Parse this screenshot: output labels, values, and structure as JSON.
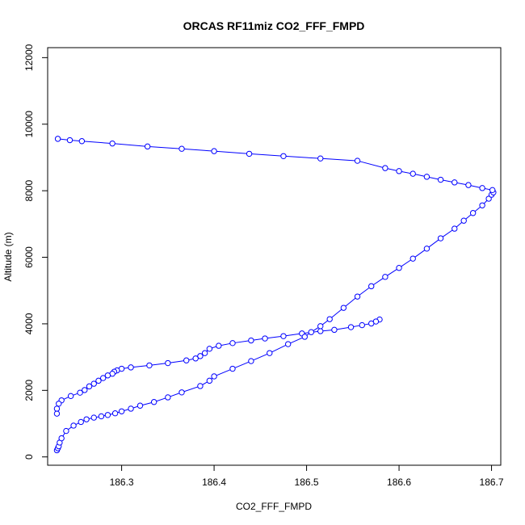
{
  "chart_data": {
    "type": "scatter",
    "title": "ORCAS RF11miz CO2_FFF_FMPD",
    "xlabel": "CO2_FFF_FMPD",
    "ylabel": "Altitude (m)",
    "xlim": [
      186.22,
      186.71
    ],
    "ylim": [
      -250,
      12300
    ],
    "xticks": [
      {
        "value": 186.3,
        "label": "186.3"
      },
      {
        "value": 186.4,
        "label": "186.4"
      },
      {
        "value": 186.5,
        "label": "186.5"
      },
      {
        "value": 186.6,
        "label": "186.6"
      },
      {
        "value": 186.7,
        "label": "186.7"
      }
    ],
    "yticks": [
      {
        "value": 0,
        "label": "0"
      },
      {
        "value": 2000,
        "label": "2000"
      },
      {
        "value": 4000,
        "label": "4000"
      },
      {
        "value": 6000,
        "label": "6000"
      },
      {
        "value": 8000,
        "label": "8000"
      },
      {
        "value": 10000,
        "label": "10000"
      },
      {
        "value": 12000,
        "label": "12000"
      }
    ],
    "series_color": "#0000ff",
    "grid": false,
    "series": [
      {
        "x": [
          186.579,
          186.575,
          186.57,
          186.56,
          186.548,
          186.53,
          186.515,
          186.495,
          186.475,
          186.455,
          186.44,
          186.42,
          186.405,
          186.395,
          186.39,
          186.385,
          186.38,
          186.37,
          186.35,
          186.33,
          186.31,
          186.3,
          186.295,
          186.292,
          186.29,
          186.285,
          186.28,
          186.275,
          186.27,
          186.265,
          186.26,
          186.255,
          186.245,
          186.235,
          186.232,
          186.23,
          186.23
        ],
        "y": [
          4130,
          4070,
          4010,
          3960,
          3900,
          3820,
          3780,
          3710,
          3630,
          3560,
          3500,
          3420,
          3340,
          3250,
          3120,
          3030,
          2960,
          2900,
          2820,
          2750,
          2690,
          2650,
          2600,
          2560,
          2500,
          2450,
          2370,
          2290,
          2200,
          2120,
          2010,
          1930,
          1830,
          1700,
          1600,
          1450,
          1300
        ]
      },
      {
        "x": [
          186.23,
          186.231,
          186.232,
          186.233,
          186.235,
          186.24,
          186.248,
          186.256,
          186.262,
          186.27,
          186.278,
          186.285,
          186.293,
          186.3,
          186.31,
          186.32,
          186.335,
          186.35,
          186.365,
          186.385,
          186.395,
          186.4,
          186.42,
          186.44,
          186.46,
          186.48,
          186.498,
          186.505,
          186.515,
          186.525,
          186.54,
          186.555,
          186.57,
          186.585,
          186.6,
          186.615,
          186.63,
          186.645,
          186.66,
          186.67,
          186.68,
          186.69,
          186.697,
          186.7,
          186.702
        ],
        "y": [
          200,
          260,
          320,
          430,
          560,
          780,
          940,
          1050,
          1130,
          1180,
          1220,
          1260,
          1310,
          1370,
          1450,
          1540,
          1650,
          1790,
          1940,
          2130,
          2290,
          2420,
          2650,
          2880,
          3120,
          3390,
          3610,
          3750,
          3930,
          4140,
          4480,
          4820,
          5130,
          5410,
          5680,
          5960,
          6260,
          6570,
          6860,
          7100,
          7330,
          7560,
          7760,
          7880,
          7950
        ]
      },
      {
        "x": [
          186.701,
          186.69,
          186.675,
          186.66,
          186.645,
          186.63,
          186.615,
          186.6,
          186.585,
          186.555,
          186.515,
          186.475,
          186.438,
          186.4,
          186.365,
          186.328,
          186.29,
          186.257,
          186.244,
          186.231
        ],
        "y": [
          8020,
          8080,
          8170,
          8250,
          8330,
          8420,
          8510,
          8590,
          8680,
          8900,
          8970,
          9040,
          9110,
          9190,
          9260,
          9330,
          9420,
          9490,
          9520,
          9560
        ]
      }
    ]
  }
}
